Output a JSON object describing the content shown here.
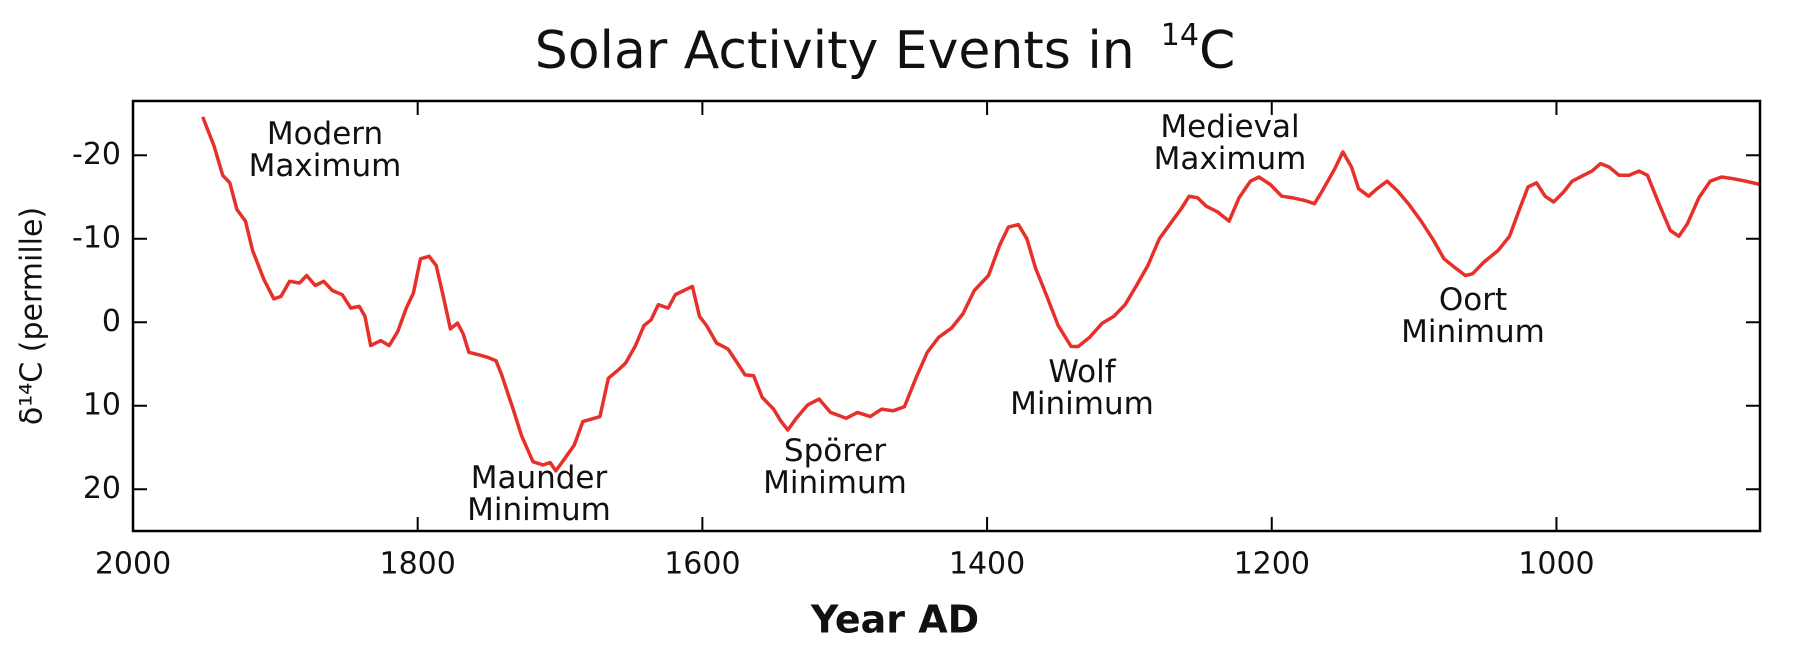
{
  "chart_data": {
    "type": "line",
    "title": "Solar Activity Events in",
    "title_superscript": "14",
    "title_suffix": "C",
    "xlabel": "Year AD",
    "ylabel": "δ¹⁴C (permille)",
    "xlim": [
      2000,
      857
    ],
    "xticks": [
      2000,
      1800,
      1600,
      1400,
      1200,
      1000
    ],
    "ylim": [
      -26.5,
      25
    ],
    "y_inverted": true,
    "yticks": [
      -20,
      -10,
      0,
      10,
      20
    ],
    "grid": false,
    "x": [
      1951,
      1943,
      1937,
      1932,
      1927,
      1921,
      1916,
      1908,
      1901,
      1896,
      1890,
      1883,
      1878,
      1872,
      1866,
      1860,
      1853,
      1847,
      1841,
      1837,
      1833,
      1826,
      1820,
      1814,
      1808,
      1803,
      1798,
      1792,
      1787,
      1782,
      1777,
      1772,
      1768,
      1764,
      1757,
      1751,
      1745,
      1741,
      1733,
      1727,
      1719,
      1712,
      1707,
      1703,
      1697,
      1690,
      1684,
      1676,
      1672,
      1666,
      1659,
      1654,
      1647,
      1641,
      1636,
      1631,
      1624,
      1619,
      1613,
      1607,
      1602,
      1597,
      1590,
      1582,
      1575,
      1570,
      1564,
      1558,
      1550,
      1545,
      1540,
      1534,
      1526,
      1518,
      1510,
      1499,
      1491,
      1482,
      1474,
      1466,
      1458,
      1450,
      1442,
      1434,
      1425,
      1417,
      1409,
      1399,
      1391,
      1385,
      1378,
      1372,
      1366,
      1358,
      1350,
      1341,
      1336,
      1328,
      1319,
      1311,
      1303,
      1295,
      1287,
      1279,
      1270,
      1264,
      1258,
      1252,
      1246,
      1238,
      1230,
      1223,
      1215,
      1209,
      1201,
      1193,
      1185,
      1177,
      1170,
      1165,
      1156,
      1150,
      1144,
      1139,
      1132,
      1126,
      1119,
      1112,
      1104,
      1095,
      1087,
      1079,
      1071,
      1064,
      1059,
      1051,
      1041,
      1033,
      1026,
      1020,
      1014,
      1008,
      1002,
      995,
      989,
      981,
      975,
      969,
      963,
      956,
      949,
      942,
      936,
      928,
      920,
      914,
      908,
      900,
      892,
      884,
      876,
      867,
      857
    ],
    "series": [
      {
        "color": "#e8302a",
        "values": [
          -24.6,
          -21.1,
          -17.6,
          -16.7,
          -13.5,
          -12.1,
          -8.6,
          -5.1,
          -2.8,
          -3.1,
          -4.9,
          -4.7,
          -5.6,
          -4.4,
          -4.9,
          -3.8,
          -3.3,
          -1.7,
          -1.9,
          -0.7,
          2.8,
          2.2,
          2.8,
          1.1,
          -1.7,
          -3.5,
          -7.6,
          -7.9,
          -6.8,
          -3.1,
          0.8,
          0.1,
          1.4,
          3.6,
          3.9,
          4.2,
          4.6,
          6.3,
          10.4,
          13.6,
          16.7,
          17.1,
          16.8,
          17.8,
          16.4,
          14.7,
          11.9,
          11.5,
          11.3,
          6.7,
          5.7,
          4.9,
          2.8,
          0.4,
          -0.3,
          -2.1,
          -1.7,
          -3.3,
          -3.8,
          -4.3,
          -0.7,
          0.4,
          2.5,
          3.2,
          5.0,
          6.3,
          6.4,
          9.0,
          10.4,
          11.8,
          12.9,
          11.5,
          9.9,
          9.2,
          10.8,
          11.5,
          10.8,
          11.3,
          10.4,
          10.6,
          10.1,
          6.7,
          3.6,
          1.8,
          0.7,
          -1.0,
          -3.8,
          -5.6,
          -9.3,
          -11.4,
          -11.7,
          -10.0,
          -6.5,
          -3.1,
          0.4,
          2.9,
          2.9,
          1.8,
          0.1,
          -0.7,
          -2.1,
          -4.4,
          -6.8,
          -10.0,
          -12.1,
          -13.5,
          -15.1,
          -14.9,
          -13.9,
          -13.2,
          -12.1,
          -14.9,
          -16.9,
          -17.4,
          -16.5,
          -15.1,
          -14.9,
          -14.6,
          -14.2,
          -15.6,
          -18.3,
          -20.4,
          -18.6,
          -16.0,
          -15.1,
          -16.0,
          -16.9,
          -15.8,
          -14.2,
          -12.1,
          -10.0,
          -7.6,
          -6.5,
          -5.6,
          -5.8,
          -7.2,
          -8.6,
          -10.3,
          -13.5,
          -16.2,
          -16.7,
          -15.1,
          -14.4,
          -15.6,
          -16.9,
          -17.6,
          -18.1,
          -19.0,
          -18.6,
          -17.6,
          -17.6,
          -18.1,
          -17.6,
          -14.2,
          -11.0,
          -10.3,
          -11.8,
          -14.9,
          -16.9,
          -17.4,
          -17.2,
          -16.9,
          -16.5
        ]
      }
    ],
    "annotations": [
      [
        "Modern",
        "Maximum"
      ],
      [
        "Maunder",
        "Minimum"
      ],
      [
        "Spörer",
        "Minimum"
      ],
      [
        "Wolf",
        "Minimum"
      ],
      [
        "Medieval",
        "Maximum"
      ],
      [
        "Oort",
        "Minimum"
      ]
    ]
  }
}
